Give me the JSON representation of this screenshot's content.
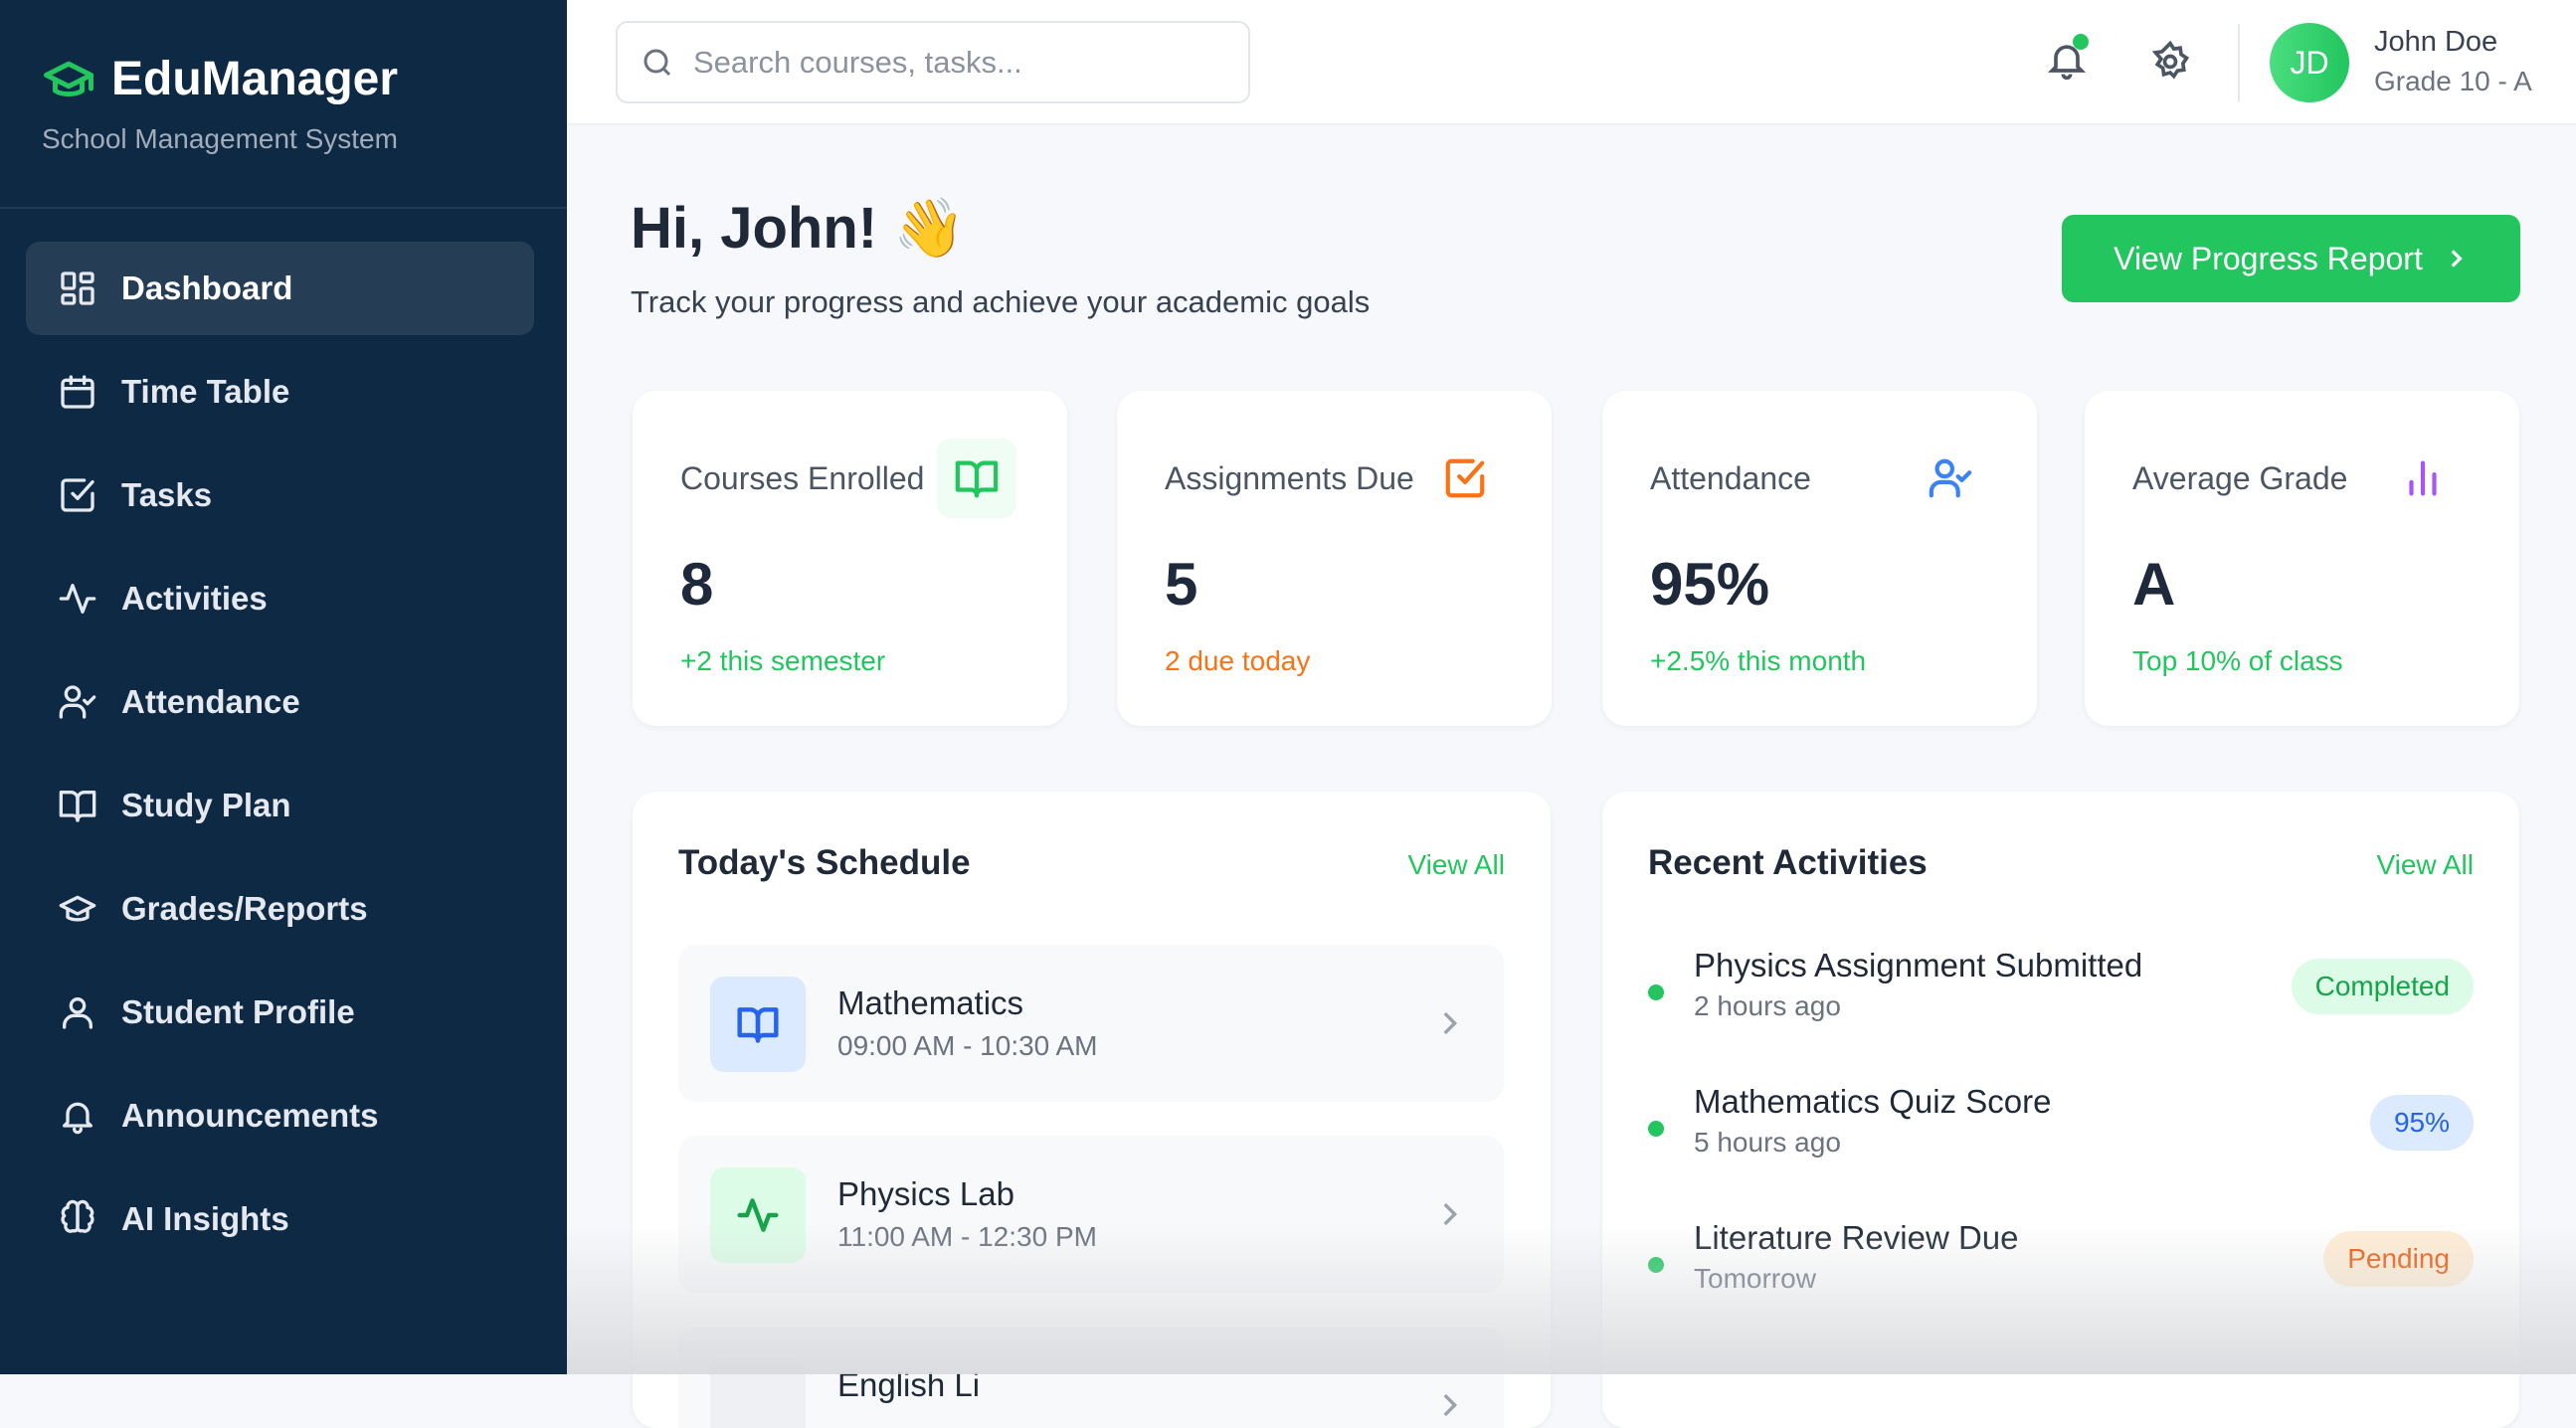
{
  "app": {
    "name": "EduManager",
    "tagline": "School Management System"
  },
  "sidebar": {
    "items": [
      {
        "label": "Dashboard",
        "icon": "dashboard-grid-icon",
        "active": true
      },
      {
        "label": "Time Table",
        "icon": "calendar-icon"
      },
      {
        "label": "Tasks",
        "icon": "checkbox-icon"
      },
      {
        "label": "Activities",
        "icon": "activity-pulse-icon"
      },
      {
        "label": "Attendance",
        "icon": "user-check-icon"
      },
      {
        "label": "Study Plan",
        "icon": "book-open-icon"
      },
      {
        "label": "Grades/Reports",
        "icon": "graduation-cap-icon"
      },
      {
        "label": "Student Profile",
        "icon": "user-icon"
      },
      {
        "label": "Announcements",
        "icon": "bell-icon"
      },
      {
        "label": "AI Insights",
        "icon": "brain-icon"
      }
    ]
  },
  "header": {
    "search_placeholder": "Search courses, tasks...",
    "user": {
      "initials": "JD",
      "name": "John Doe",
      "grade": "Grade 10 - A"
    }
  },
  "greeting": {
    "title": "Hi, John! 👋",
    "subtitle": "Track your progress and achieve your academic goals",
    "button": "View Progress Report"
  },
  "stats": [
    {
      "label": "Courses Enrolled",
      "value": "8",
      "sub": "+2 this semester",
      "icon": "book-open-icon",
      "color": "#22c55e",
      "sub_color": "#22c55e"
    },
    {
      "label": "Assignments Due",
      "value": "5",
      "sub": "2 due today",
      "icon": "checkbox-icon",
      "color": "#f97316",
      "sub_color": "#f97316"
    },
    {
      "label": "Attendance",
      "value": "95%",
      "sub": "+2.5% this month",
      "icon": "user-check-icon",
      "color": "#3b82f6",
      "sub_color": "#22c55e"
    },
    {
      "label": "Average Grade",
      "value": "A",
      "sub": "Top 10% of class",
      "icon": "bar-chart-icon",
      "color": "#a855f7",
      "sub_color": "#22c55e"
    }
  ],
  "schedule": {
    "title": "Today's Schedule",
    "view_all": "View All",
    "items": [
      {
        "name": "Mathematics",
        "time": "09:00 AM - 10:30 AM",
        "icon": "book-open-icon"
      },
      {
        "name": "Physics Lab",
        "time": "11:00 AM - 12:30 PM",
        "icon": "activity-pulse-icon"
      },
      {
        "name": "English Li",
        "time": ""
      }
    ]
  },
  "activities": {
    "title": "Recent Activities",
    "view_all": "View All",
    "items": [
      {
        "name": "Physics Assignment Submitted",
        "time": "2 hours ago",
        "badge": "Completed",
        "badge_bg": "#dcfce7",
        "badge_color": "#16a34a"
      },
      {
        "name": "Mathematics Quiz Score",
        "time": "5 hours ago",
        "badge": "95%",
        "badge_bg": "#dbeafe",
        "badge_color": "#2563eb"
      },
      {
        "name": "Literature Review Due",
        "time": "Tomorrow",
        "badge": "Pending",
        "badge_bg": "#ffedd5",
        "badge_color": "#ea580c"
      }
    ]
  }
}
